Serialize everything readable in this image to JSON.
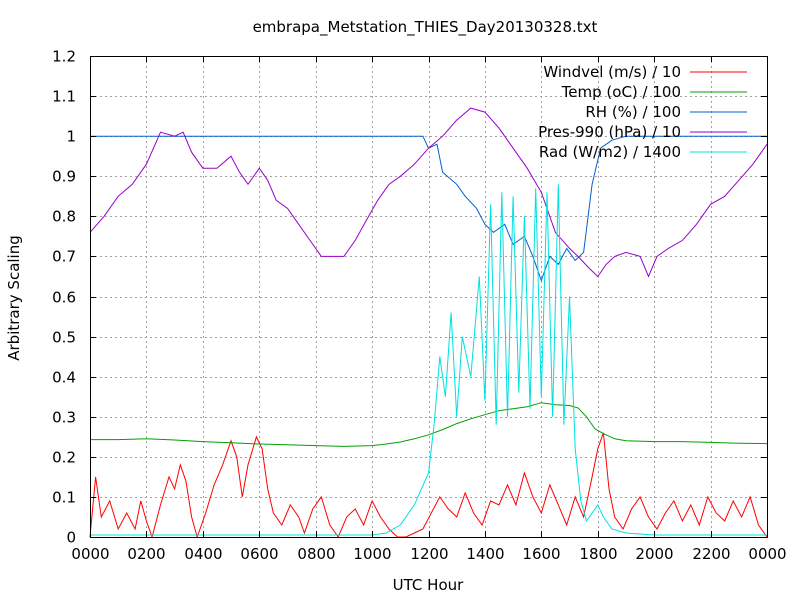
{
  "chart_data": {
    "type": "line",
    "title": "embrapa_Metstation_THIES_Day20130328.txt",
    "xlabel": "UTC Hour",
    "ylabel": "Arbitrary Scaling",
    "xlim": [
      0,
      24
    ],
    "ylim": [
      0,
      1.2
    ],
    "grid": true,
    "legend_position": "top-right",
    "x_ticks": [
      {
        "value": 0,
        "label": "0000"
      },
      {
        "value": 2,
        "label": "0200"
      },
      {
        "value": 4,
        "label": "0400"
      },
      {
        "value": 6,
        "label": "0600"
      },
      {
        "value": 8,
        "label": "0800"
      },
      {
        "value": 10,
        "label": "1000"
      },
      {
        "value": 12,
        "label": "1200"
      },
      {
        "value": 14,
        "label": "1400"
      },
      {
        "value": 16,
        "label": "1600"
      },
      {
        "value": 18,
        "label": "1800"
      },
      {
        "value": 20,
        "label": "2000"
      },
      {
        "value": 22,
        "label": "2200"
      },
      {
        "value": 24,
        "label": "0000"
      }
    ],
    "y_ticks": [
      {
        "value": 0,
        "label": "0"
      },
      {
        "value": 0.1,
        "label": "0.1"
      },
      {
        "value": 0.2,
        "label": "0.2"
      },
      {
        "value": 0.3,
        "label": "0.3"
      },
      {
        "value": 0.4,
        "label": "0.4"
      },
      {
        "value": 0.5,
        "label": "0.5"
      },
      {
        "value": 0.6,
        "label": "0.6"
      },
      {
        "value": 0.7,
        "label": "0.7"
      },
      {
        "value": 0.8,
        "label": "0.8"
      },
      {
        "value": 0.9,
        "label": "0.9"
      },
      {
        "value": 1.0,
        "label": "1"
      },
      {
        "value": 1.1,
        "label": "1.1"
      },
      {
        "value": 1.2,
        "label": "1.2"
      }
    ],
    "series": [
      {
        "name": "Windvel (m/s) / 10",
        "color": "#ff0000",
        "points": [
          [
            0,
            0.0
          ],
          [
            0.2,
            0.15
          ],
          [
            0.4,
            0.05
          ],
          [
            0.7,
            0.09
          ],
          [
            1.0,
            0.02
          ],
          [
            1.3,
            0.06
          ],
          [
            1.6,
            0.02
          ],
          [
            1.8,
            0.09
          ],
          [
            2.0,
            0.04
          ],
          [
            2.2,
            0.0
          ],
          [
            2.5,
            0.08
          ],
          [
            2.8,
            0.15
          ],
          [
            3.0,
            0.12
          ],
          [
            3.2,
            0.18
          ],
          [
            3.4,
            0.14
          ],
          [
            3.6,
            0.05
          ],
          [
            3.8,
            0.0
          ],
          [
            4.1,
            0.06
          ],
          [
            4.4,
            0.13
          ],
          [
            4.7,
            0.18
          ],
          [
            5.0,
            0.24
          ],
          [
            5.2,
            0.2
          ],
          [
            5.4,
            0.1
          ],
          [
            5.6,
            0.18
          ],
          [
            5.9,
            0.25
          ],
          [
            6.1,
            0.22
          ],
          [
            6.3,
            0.12
          ],
          [
            6.5,
            0.06
          ],
          [
            6.8,
            0.03
          ],
          [
            7.1,
            0.08
          ],
          [
            7.4,
            0.05
          ],
          [
            7.6,
            0.01
          ],
          [
            7.9,
            0.07
          ],
          [
            8.2,
            0.1
          ],
          [
            8.5,
            0.03
          ],
          [
            8.8,
            0.0
          ],
          [
            9.1,
            0.05
          ],
          [
            9.4,
            0.07
          ],
          [
            9.7,
            0.03
          ],
          [
            10.0,
            0.09
          ],
          [
            10.3,
            0.05
          ],
          [
            10.6,
            0.02
          ],
          [
            10.9,
            0.0
          ],
          [
            11.2,
            0.0
          ],
          [
            11.5,
            0.01
          ],
          [
            11.8,
            0.02
          ],
          [
            12.1,
            0.06
          ],
          [
            12.4,
            0.1
          ],
          [
            12.7,
            0.07
          ],
          [
            13.0,
            0.05
          ],
          [
            13.3,
            0.11
          ],
          [
            13.6,
            0.06
          ],
          [
            13.9,
            0.03
          ],
          [
            14.2,
            0.09
          ],
          [
            14.5,
            0.08
          ],
          [
            14.8,
            0.13
          ],
          [
            15.1,
            0.08
          ],
          [
            15.4,
            0.16
          ],
          [
            15.7,
            0.1
          ],
          [
            16.0,
            0.06
          ],
          [
            16.3,
            0.13
          ],
          [
            16.6,
            0.08
          ],
          [
            16.9,
            0.03
          ],
          [
            17.2,
            0.1
          ],
          [
            17.5,
            0.05
          ],
          [
            17.8,
            0.15
          ],
          [
            18.0,
            0.22
          ],
          [
            18.2,
            0.26
          ],
          [
            18.4,
            0.12
          ],
          [
            18.6,
            0.05
          ],
          [
            18.9,
            0.02
          ],
          [
            19.2,
            0.07
          ],
          [
            19.5,
            0.1
          ],
          [
            19.8,
            0.05
          ],
          [
            20.1,
            0.02
          ],
          [
            20.4,
            0.06
          ],
          [
            20.7,
            0.09
          ],
          [
            21.0,
            0.04
          ],
          [
            21.3,
            0.08
          ],
          [
            21.6,
            0.03
          ],
          [
            21.9,
            0.1
          ],
          [
            22.2,
            0.06
          ],
          [
            22.5,
            0.04
          ],
          [
            22.8,
            0.09
          ],
          [
            23.1,
            0.05
          ],
          [
            23.4,
            0.1
          ],
          [
            23.7,
            0.03
          ],
          [
            24.0,
            0.0
          ]
        ]
      },
      {
        "name": "Temp (oC) / 100",
        "color": "#00a000",
        "points": [
          [
            0,
            0.243
          ],
          [
            1.0,
            0.243
          ],
          [
            2.0,
            0.245
          ],
          [
            3.0,
            0.242
          ],
          [
            4.0,
            0.238
          ],
          [
            5.0,
            0.235
          ],
          [
            6.0,
            0.232
          ],
          [
            7.0,
            0.23
          ],
          [
            8.0,
            0.228
          ],
          [
            9.0,
            0.226
          ],
          [
            10.0,
            0.228
          ],
          [
            10.5,
            0.232
          ],
          [
            11.0,
            0.237
          ],
          [
            11.5,
            0.245
          ],
          [
            12.0,
            0.255
          ],
          [
            12.5,
            0.268
          ],
          [
            13.0,
            0.283
          ],
          [
            13.5,
            0.295
          ],
          [
            14.0,
            0.305
          ],
          [
            14.5,
            0.315
          ],
          [
            15.0,
            0.32
          ],
          [
            15.5,
            0.325
          ],
          [
            16.0,
            0.335
          ],
          [
            16.5,
            0.33
          ],
          [
            17.0,
            0.328
          ],
          [
            17.3,
            0.322
          ],
          [
            17.6,
            0.3
          ],
          [
            17.9,
            0.27
          ],
          [
            18.2,
            0.258
          ],
          [
            18.6,
            0.245
          ],
          [
            19.0,
            0.24
          ],
          [
            20.0,
            0.238
          ],
          [
            21.0,
            0.238
          ],
          [
            22.0,
            0.236
          ],
          [
            23.0,
            0.234
          ],
          [
            24.0,
            0.233
          ]
        ]
      },
      {
        "name": "RH (%) / 100",
        "color": "#0060d0",
        "points": [
          [
            0,
            1.0
          ],
          [
            11.8,
            1.0
          ],
          [
            12.0,
            0.97
          ],
          [
            12.3,
            0.98
          ],
          [
            12.5,
            0.91
          ],
          [
            13.0,
            0.88
          ],
          [
            13.3,
            0.85
          ],
          [
            13.7,
            0.82
          ],
          [
            14.0,
            0.78
          ],
          [
            14.3,
            0.76
          ],
          [
            14.7,
            0.78
          ],
          [
            15.0,
            0.73
          ],
          [
            15.4,
            0.75
          ],
          [
            15.7,
            0.7
          ],
          [
            16.0,
            0.64
          ],
          [
            16.3,
            0.7
          ],
          [
            16.6,
            0.68
          ],
          [
            16.9,
            0.72
          ],
          [
            17.2,
            0.69
          ],
          [
            17.5,
            0.71
          ],
          [
            17.8,
            0.88
          ],
          [
            18.1,
            0.97
          ],
          [
            18.5,
            0.99
          ],
          [
            19.0,
            1.0
          ],
          [
            24.0,
            1.0
          ]
        ]
      },
      {
        "name": "Pres-990 (hPa) / 10",
        "color": "#9900cc",
        "points": [
          [
            0,
            0.76
          ],
          [
            0.5,
            0.8
          ],
          [
            1.0,
            0.85
          ],
          [
            1.5,
            0.88
          ],
          [
            2.0,
            0.93
          ],
          [
            2.5,
            1.01
          ],
          [
            3.0,
            1.0
          ],
          [
            3.3,
            1.01
          ],
          [
            3.6,
            0.96
          ],
          [
            4.0,
            0.92
          ],
          [
            4.5,
            0.92
          ],
          [
            5.0,
            0.95
          ],
          [
            5.3,
            0.91
          ],
          [
            5.6,
            0.88
          ],
          [
            6.0,
            0.92
          ],
          [
            6.3,
            0.89
          ],
          [
            6.6,
            0.84
          ],
          [
            7.0,
            0.82
          ],
          [
            7.4,
            0.78
          ],
          [
            7.8,
            0.74
          ],
          [
            8.2,
            0.7
          ],
          [
            8.6,
            0.7
          ],
          [
            9.0,
            0.7
          ],
          [
            9.4,
            0.74
          ],
          [
            9.8,
            0.79
          ],
          [
            10.2,
            0.84
          ],
          [
            10.6,
            0.88
          ],
          [
            11.0,
            0.9
          ],
          [
            11.5,
            0.93
          ],
          [
            12.0,
            0.97
          ],
          [
            12.5,
            1.0
          ],
          [
            13.0,
            1.04
          ],
          [
            13.5,
            1.07
          ],
          [
            14.0,
            1.06
          ],
          [
            14.5,
            1.02
          ],
          [
            15.0,
            0.97
          ],
          [
            15.5,
            0.92
          ],
          [
            16.0,
            0.86
          ],
          [
            16.5,
            0.76
          ],
          [
            17.0,
            0.72
          ],
          [
            17.3,
            0.7
          ],
          [
            17.7,
            0.67
          ],
          [
            18.0,
            0.65
          ],
          [
            18.3,
            0.68
          ],
          [
            18.6,
            0.7
          ],
          [
            19.0,
            0.71
          ],
          [
            19.5,
            0.7
          ],
          [
            19.8,
            0.65
          ],
          [
            20.1,
            0.7
          ],
          [
            20.5,
            0.72
          ],
          [
            21.0,
            0.74
          ],
          [
            21.5,
            0.78
          ],
          [
            22.0,
            0.83
          ],
          [
            22.5,
            0.85
          ],
          [
            23.0,
            0.89
          ],
          [
            23.5,
            0.93
          ],
          [
            24.0,
            0.98
          ]
        ]
      },
      {
        "name": "Rad (W/m2) / 1400",
        "color": "#00e0e0",
        "points": [
          [
            0,
            0.005
          ],
          [
            10.0,
            0.005
          ],
          [
            10.5,
            0.01
          ],
          [
            11.0,
            0.03
          ],
          [
            11.5,
            0.08
          ],
          [
            12.0,
            0.16
          ],
          [
            12.2,
            0.28
          ],
          [
            12.4,
            0.45
          ],
          [
            12.6,
            0.35
          ],
          [
            12.8,
            0.56
          ],
          [
            13.0,
            0.3
          ],
          [
            13.2,
            0.5
          ],
          [
            13.5,
            0.4
          ],
          [
            13.8,
            0.65
          ],
          [
            14.0,
            0.34
          ],
          [
            14.2,
            0.83
          ],
          [
            14.4,
            0.28
          ],
          [
            14.6,
            0.86
          ],
          [
            14.8,
            0.3
          ],
          [
            15.0,
            0.85
          ],
          [
            15.2,
            0.36
          ],
          [
            15.4,
            0.8
          ],
          [
            15.6,
            0.32
          ],
          [
            15.8,
            0.87
          ],
          [
            16.0,
            0.35
          ],
          [
            16.2,
            0.86
          ],
          [
            16.4,
            0.3
          ],
          [
            16.6,
            0.88
          ],
          [
            16.8,
            0.28
          ],
          [
            17.0,
            0.6
          ],
          [
            17.2,
            0.22
          ],
          [
            17.4,
            0.09
          ],
          [
            17.6,
            0.04
          ],
          [
            17.8,
            0.06
          ],
          [
            18.0,
            0.08
          ],
          [
            18.2,
            0.05
          ],
          [
            18.5,
            0.02
          ],
          [
            19.0,
            0.01
          ],
          [
            20.0,
            0.005
          ],
          [
            24.0,
            0.005
          ]
        ]
      }
    ]
  }
}
